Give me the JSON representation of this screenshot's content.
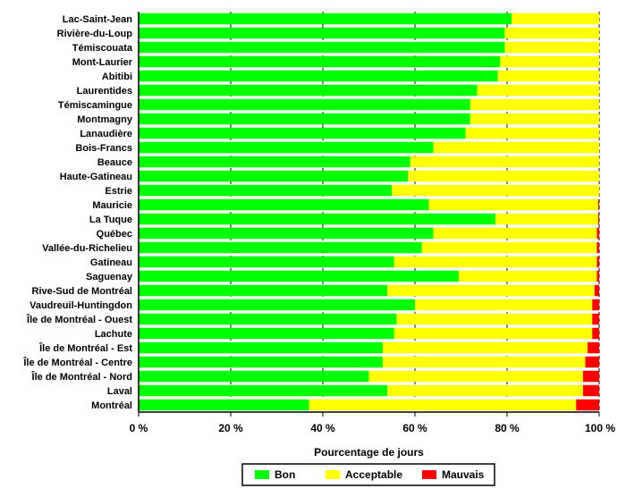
{
  "chart_data": {
    "type": "bar",
    "orientation": "horizontal",
    "stacked": true,
    "xlabel": "Pourcentage de jours",
    "xlim": [
      0,
      100
    ],
    "x_ticks": [
      0,
      20,
      40,
      60,
      80,
      100
    ],
    "x_tick_labels": [
      "0 %",
      "20 %",
      "40 %",
      "60 %",
      "80 %",
      "100 %"
    ],
    "grid": "vertical-dashed",
    "legend_position": "bottom",
    "categories": [
      "Lac-Saint-Jean",
      "Rivière-du-Loup",
      "Témiscouata",
      "Mont-Laurier",
      "Abitibi",
      "Laurentides",
      "Témiscamingue",
      "Montmagny",
      "Lanaudière",
      "Bois-Francs",
      "Beauce",
      "Haute-Gatineau",
      "Estrie",
      "Mauricie",
      "La Tuque",
      "Québec",
      "Vallée-du-Richelieu",
      "Gatineau",
      "Saguenay",
      "Rive-Sud de Montréal",
      "Vaudreuil-Huntingdon",
      "Île de Montréal - Ouest",
      "Lachute",
      "Île de Montréal - Est",
      "Île de Montréal - Centre",
      "Île de Montréal - Nord",
      "Laval",
      "Montréal"
    ],
    "series": [
      {
        "name": "Bon",
        "color": "#00ff00",
        "values": [
          81,
          79.5,
          79.5,
          78.5,
          78,
          73.5,
          72,
          72,
          71,
          64,
          59,
          58.5,
          55,
          63,
          77.5,
          64,
          61.5,
          55.5,
          69.5,
          54,
          60,
          56,
          55.5,
          53,
          53,
          50,
          54,
          37
        ]
      },
      {
        "name": "Acceptable",
        "color": "#ffff00",
        "values": [
          19,
          20.5,
          20.5,
          21.5,
          22,
          26.5,
          28,
          28,
          29,
          36,
          41,
          41.5,
          45,
          36.8,
          22.3,
          35.5,
          38,
          44,
          30,
          45,
          38.5,
          42.5,
          43,
          44.5,
          44,
          46.5,
          42.5,
          58
        ]
      },
      {
        "name": "Mauvais",
        "color": "#ff0000",
        "values": [
          0,
          0,
          0,
          0,
          0,
          0,
          0,
          0,
          0,
          0,
          0,
          0,
          0,
          0.2,
          0.2,
          0.5,
          0.5,
          0.5,
          0.5,
          1,
          1.5,
          1.5,
          1.5,
          2.5,
          3,
          3.5,
          3.5,
          5
        ]
      }
    ]
  }
}
